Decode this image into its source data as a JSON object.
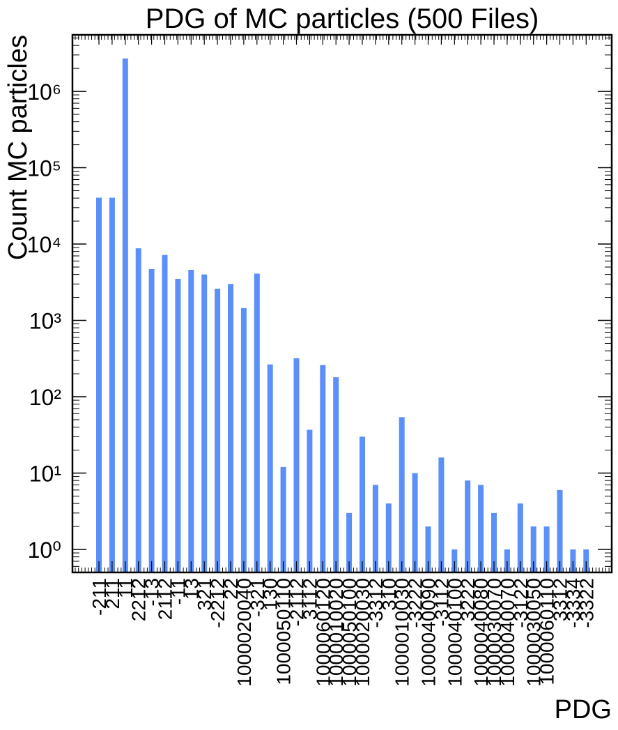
{
  "chart_data": {
    "type": "bar",
    "title": "PDG of MC particles (500 Files)",
    "xlabel": "PDG",
    "ylabel": "Count MC particles",
    "yscale": "log",
    "ylim": [
      0.5,
      5500000
    ],
    "ytick_labels": [
      "10⁰",
      "10¹",
      "10²",
      "10³",
      "10⁴",
      "10⁵",
      "10⁶"
    ],
    "bar_color": "#5b8ff9",
    "categories": [
      "-211",
      "211",
      "11",
      "2212",
      "-13",
      "2112",
      "-11",
      "13",
      "321",
      "-2212",
      "22",
      "1000020040",
      "-321",
      "130",
      "1000050110",
      "-2112",
      "3112",
      "1000060120",
      "1000010020",
      "1000050100",
      "1000020030",
      "-3312",
      "310",
      "1000010030",
      "-3222",
      "1000040090",
      "-3112",
      "1000040100",
      "3222",
      "1000040080",
      "1000030070",
      "1000040070",
      "-3122",
      "1000030050",
      "1000060110",
      "3312",
      "-3334",
      "-3322"
    ],
    "values": [
      40500,
      40500,
      2700000,
      8800,
      4700,
      7200,
      3500,
      4600,
      4000,
      2600,
      3000,
      1450,
      4100,
      265,
      12,
      320,
      37,
      260,
      180,
      3,
      30,
      7,
      4,
      54,
      10,
      2,
      16,
      1,
      8,
      7,
      3,
      1,
      4,
      2,
      2,
      6,
      1,
      1
    ]
  }
}
